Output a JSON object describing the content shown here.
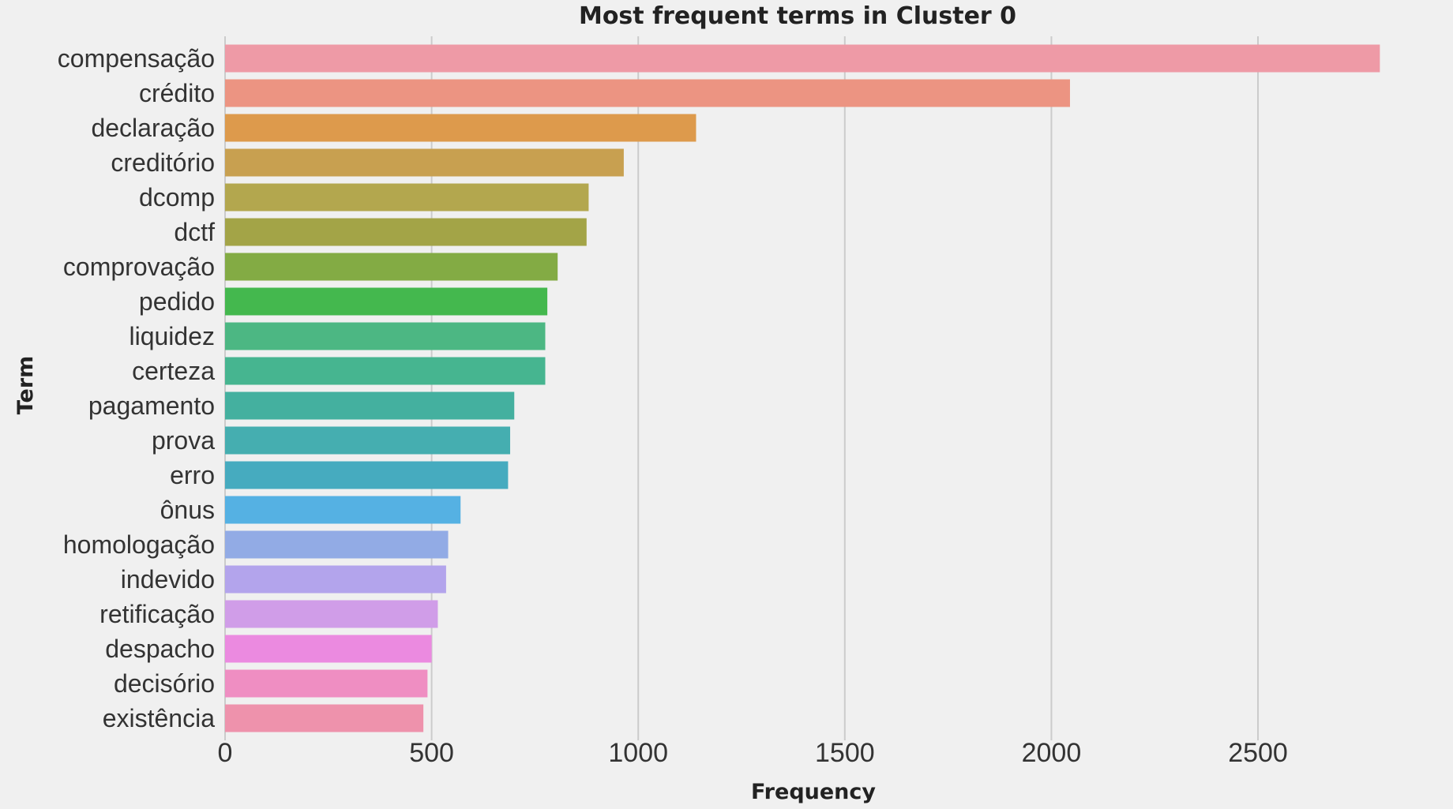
{
  "chart_data": {
    "type": "bar",
    "orientation": "horizontal",
    "title": "Most frequent terms in Cluster 0",
    "xlabel": "Frequency",
    "ylabel": "Term",
    "xlim": [
      0,
      2800
    ],
    "xticks": [
      0,
      500,
      1000,
      1500,
      2000,
      2500
    ],
    "grid": true,
    "categories": [
      "compensação",
      "crédito",
      "declaração",
      "creditório",
      "dcomp",
      "dctf",
      "comprovação",
      "pedido",
      "liquidez",
      "certeza",
      "pagamento",
      "prova",
      "erro",
      "ônus",
      "homologação",
      "indevido",
      "retificação",
      "despacho",
      "decisório",
      "existência"
    ],
    "values": [
      2795,
      2045,
      1140,
      965,
      880,
      875,
      805,
      780,
      775,
      775,
      700,
      690,
      685,
      570,
      540,
      535,
      515,
      500,
      490,
      480
    ],
    "colors": [
      "#ee9aa6",
      "#ec9482",
      "#dd9a4c",
      "#c8a050",
      "#b3a74e",
      "#a3a447",
      "#83ab44",
      "#44b84e",
      "#4cb783",
      "#46b590",
      "#44b09f",
      "#45aeb0",
      "#46abbf",
      "#55b1e3",
      "#92abe5",
      "#b3a4ec",
      "#d09de8",
      "#eb8ae0",
      "#ef8ec2",
      "#ee92ac"
    ]
  }
}
